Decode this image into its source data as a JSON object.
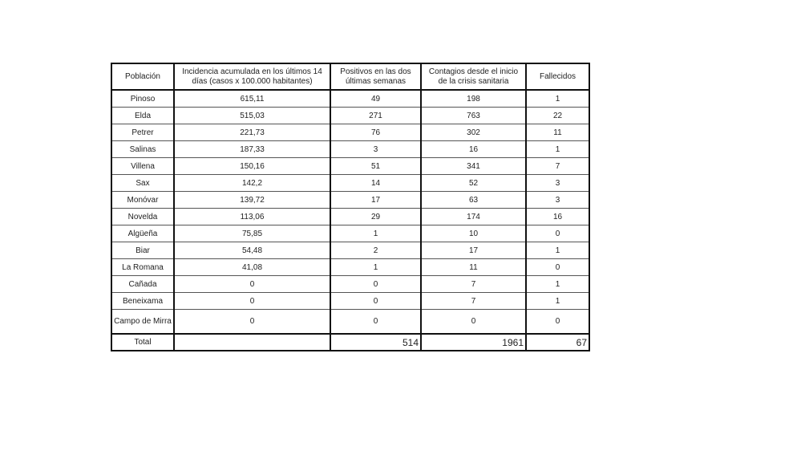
{
  "table": {
    "headers": [
      "Población",
      "Incidencia acumulada en los últimos 14 días (casos x 100.000 habitantes)",
      "Positivos en las dos últimas semanas",
      "Contagios desde el inicio de la crisis sanitaria",
      "Fallecidos"
    ],
    "rows": [
      [
        "Pinoso",
        "615,11",
        "49",
        "198",
        "1"
      ],
      [
        "Elda",
        "515,03",
        "271",
        "763",
        "22"
      ],
      [
        "Petrer",
        "221,73",
        "76",
        "302",
        "11"
      ],
      [
        "Salinas",
        "187,33",
        "3",
        "16",
        "1"
      ],
      [
        "Villena",
        "150,16",
        "51",
        "341",
        "7"
      ],
      [
        "Sax",
        "142,2",
        "14",
        "52",
        "3"
      ],
      [
        "Monóvar",
        "139,72",
        "17",
        "63",
        "3"
      ],
      [
        "Novelda",
        "113,06",
        "29",
        "174",
        "16"
      ],
      [
        "Algüeña",
        "75,85",
        "1",
        "10",
        "0"
      ],
      [
        "Biar",
        "54,48",
        "2",
        "17",
        "1"
      ],
      [
        "La Romana",
        "41,08",
        "1",
        "11",
        "0"
      ],
      [
        "Cañada",
        "0",
        "0",
        "7",
        "1"
      ],
      [
        "Beneixama",
        "0",
        "0",
        "7",
        "1"
      ],
      [
        "Campo de Mirra",
        "0",
        "0",
        "0",
        "0"
      ]
    ],
    "total": {
      "label": "Total",
      "positivos": "514",
      "contagios": "1961",
      "fallecidos": "67"
    }
  }
}
